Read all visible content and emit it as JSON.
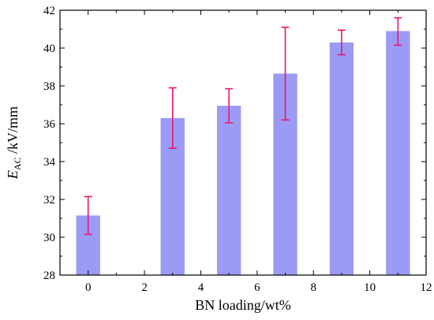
{
  "chart_data": {
    "type": "bar",
    "x": [
      0,
      3,
      5,
      7,
      9,
      11
    ],
    "values": [
      31.15,
      36.3,
      36.95,
      38.65,
      40.3,
      40.9
    ],
    "error_upper": [
      32.15,
      37.9,
      37.85,
      41.1,
      40.95,
      41.6
    ],
    "error_lower": [
      30.15,
      34.7,
      36.05,
      36.2,
      39.65,
      40.15
    ],
    "xlabel": "BN loading/wt%",
    "ylabel_main": "E",
    "ylabel_sub": "AC",
    "ylabel_rest": " /kV/mm",
    "xlim": [
      -1,
      12
    ],
    "ylim": [
      28,
      42
    ],
    "xticks": [
      0,
      2,
      4,
      6,
      8,
      10,
      12
    ],
    "yticks": [
      28,
      30,
      32,
      34,
      36,
      38,
      40,
      42
    ],
    "bar_color": "#9b9bf5",
    "error_color": "#e8176f",
    "grid": false
  }
}
